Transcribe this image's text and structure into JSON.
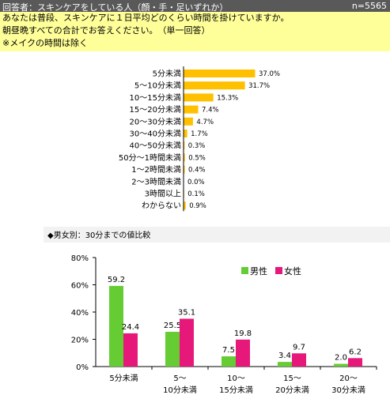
{
  "header": {
    "title": "回答者：スキンケアをしている人（顔・手・足いずれか）",
    "n": "n=5565"
  },
  "question": {
    "lines": [
      "あなたは普段、スキンケアに１日平均どのくらい時間を掛けていますか。",
      "朝昼晩すべての合計でお答えください。　（単一回答）",
      "※メイクの時間は除く"
    ]
  },
  "colors": {
    "bar1": "#ffc000",
    "male": "#66cc33",
    "female": "#e6197b",
    "header_bg": "#595959",
    "question_bg": "#ffff99"
  },
  "chart_data": [
    {
      "type": "bar",
      "orientation": "horizontal",
      "categories": [
        "5分未満",
        "5～10分未満",
        "10～15分未満",
        "15～20分未満",
        "20～30分未満",
        "30～40分未満",
        "40～50分未満",
        "50分～1時間未満",
        "1～2時間未満",
        "2～3時間未満",
        "3時間以上",
        "わからない"
      ],
      "values": [
        37.0,
        31.7,
        15.3,
        7.4,
        4.7,
        1.7,
        0.3,
        0.5,
        0.4,
        0.0,
        0.1,
        0.9
      ],
      "value_labels": [
        "37.0%",
        "31.7%",
        "15.3%",
        "7.4%",
        "4.7%",
        "1.7%",
        "0.3%",
        "0.5%",
        "0.4%",
        "0.0%",
        "0.1%",
        "0.9%"
      ]
    },
    {
      "type": "bar",
      "title": "◆男女別：30分までの値比較",
      "categories": [
        [
          "5分未満"
        ],
        [
          "5～",
          "10分未満"
        ],
        [
          "10～",
          "15分未満"
        ],
        [
          "15～",
          "20分未満"
        ],
        [
          "20～",
          "30分未満"
        ]
      ],
      "series": [
        {
          "name": "男性",
          "values": [
            59.2,
            25.5,
            7.5,
            3.4,
            2.0
          ],
          "labels": [
            "59.2",
            "25.5",
            "7.5",
            "3.4",
            "2.0"
          ]
        },
        {
          "name": "女性",
          "values": [
            24.4,
            35.1,
            19.8,
            9.7,
            6.2
          ],
          "labels": [
            "24.4",
            "35.1",
            "19.8",
            "9.7",
            "6.2"
          ]
        }
      ],
      "ylim": [
        0,
        80
      ],
      "yticks": [
        "0%",
        "20%",
        "40%",
        "60%",
        "80%"
      ],
      "grid": false,
      "legend": "top-right"
    }
  ]
}
